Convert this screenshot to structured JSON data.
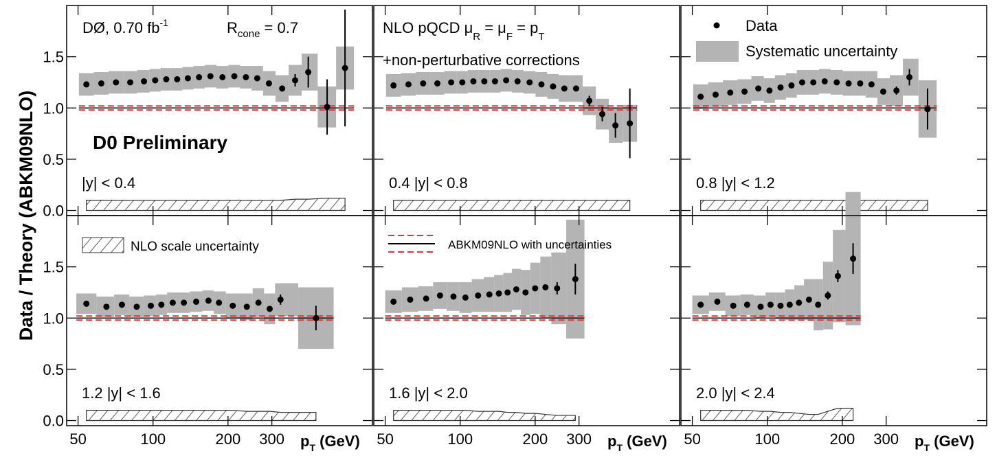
{
  "chart_data": {
    "type": "scatter",
    "ylabel": "Data / Theory (ABKM09NLO)",
    "xlabel": [
      "p",
      "T",
      " (GeV)"
    ],
    "log_x": true,
    "xlim": [
      45,
      760
    ],
    "xticks": [
      50,
      100,
      200,
      300
    ],
    "ylim": [
      -0.05,
      2.0
    ],
    "yticks": [
      {
        "value": 0,
        "label": "0.0"
      },
      {
        "value": 0.5,
        "label": "0.5"
      },
      {
        "value": 1,
        "label": "1.0"
      },
      {
        "value": 1.5,
        "label": "1.5"
      }
    ],
    "theory": 1,
    "pdf_uncertainty": 0.02,
    "colors": {
      "data": "#000000",
      "systematic": "#b4b4b4",
      "theory": "#000000",
      "pdf": "#e8322c",
      "preliminary": "#1a1adc"
    },
    "annotations": {
      "lumi": [
        "DØ, 0.70 fb",
        "-1"
      ],
      "rcone": [
        "R",
        "cone",
        " = 0.7"
      ],
      "nlo": [
        "NLO pQCD  μ",
        "R",
        " = μ",
        "F",
        " = p",
        "T"
      ],
      "np": "+non-perturbative corrections",
      "preliminary": "D0 Preliminary"
    },
    "legend": {
      "data": "Data",
      "systematic": "Systematic uncertainty",
      "scale": "NLO scale uncertainty",
      "theory": "ABKM09NLO with uncertainties"
    },
    "panels": [
      {
        "label": "|y| < 0.4",
        "x": [
          54,
          62,
          71,
          81,
          92,
          102,
          113,
          125,
          138,
          153,
          170,
          190,
          212,
          236,
          262,
          292,
          330,
          372,
          420,
          500,
          590
        ],
        "values": [
          1.23,
          1.24,
          1.25,
          1.25,
          1.26,
          1.27,
          1.28,
          1.28,
          1.29,
          1.3,
          1.31,
          1.3,
          1.31,
          1.3,
          1.29,
          1.24,
          1.19,
          1.27,
          1.35,
          1.01,
          1.39
        ],
        "errors": [
          0.01,
          0.01,
          0.01,
          0.01,
          0.01,
          0.01,
          0.01,
          0.01,
          0.01,
          0.01,
          0.01,
          0.01,
          0.01,
          0.01,
          0.01,
          0.02,
          0.03,
          0.06,
          0.15,
          0.27,
          0.57
        ],
        "syst": [
          0.11,
          0.11,
          0.11,
          0.11,
          0.11,
          0.11,
          0.11,
          0.11,
          0.11,
          0.11,
          0.11,
          0.11,
          0.11,
          0.11,
          0.12,
          0.12,
          0.13,
          0.15,
          0.18,
          0.2,
          0.21
        ],
        "scale_uncertainty": [
          0.1,
          0.1,
          0.1,
          0.1,
          0.1,
          0.1,
          0.1,
          0.1,
          0.1,
          0.1,
          0.1,
          0.1,
          0.1,
          0.1,
          0.1,
          0.1,
          0.1,
          0.11,
          0.11,
          0.12,
          0.12
        ]
      },
      {
        "label": "0.4 |y| < 0.8",
        "x": [
          54,
          62,
          71,
          81,
          92,
          102,
          113,
          125,
          138,
          153,
          170,
          190,
          212,
          236,
          262,
          292,
          330,
          372,
          420,
          480
        ],
        "values": [
          1.22,
          1.23,
          1.24,
          1.24,
          1.25,
          1.25,
          1.26,
          1.26,
          1.26,
          1.27,
          1.26,
          1.25,
          1.23,
          1.21,
          1.19,
          1.19,
          1.07,
          0.94,
          0.83,
          0.85
        ],
        "errors": [
          0.01,
          0.01,
          0.01,
          0.01,
          0.01,
          0.01,
          0.01,
          0.01,
          0.01,
          0.01,
          0.01,
          0.01,
          0.01,
          0.01,
          0.02,
          0.02,
          0.05,
          0.07,
          0.12,
          0.34
        ],
        "syst": [
          0.11,
          0.11,
          0.11,
          0.11,
          0.11,
          0.11,
          0.11,
          0.11,
          0.11,
          0.11,
          0.11,
          0.11,
          0.12,
          0.12,
          0.13,
          0.13,
          0.14,
          0.15,
          0.17,
          0.18
        ],
        "scale_uncertainty": [
          0.1,
          0.1,
          0.1,
          0.1,
          0.1,
          0.1,
          0.1,
          0.1,
          0.1,
          0.1,
          0.1,
          0.1,
          0.1,
          0.1,
          0.1,
          0.1,
          0.1,
          0.1,
          0.1,
          0.1
        ]
      },
      {
        "label": "0.8 |y| < 1.2",
        "x": [
          54,
          62,
          71,
          81,
          92,
          102,
          113,
          125,
          138,
          153,
          170,
          190,
          212,
          236,
          262,
          292,
          330,
          372,
          440
        ],
        "values": [
          1.11,
          1.13,
          1.15,
          1.16,
          1.19,
          1.17,
          1.2,
          1.22,
          1.25,
          1.25,
          1.26,
          1.25,
          1.24,
          1.24,
          1.23,
          1.16,
          1.17,
          1.3,
          0.99
        ],
        "errors": [
          0.01,
          0.01,
          0.01,
          0.01,
          0.01,
          0.01,
          0.01,
          0.01,
          0.01,
          0.01,
          0.01,
          0.01,
          0.01,
          0.01,
          0.01,
          0.02,
          0.04,
          0.08,
          0.2
        ],
        "syst": [
          0.12,
          0.12,
          0.12,
          0.12,
          0.12,
          0.12,
          0.12,
          0.12,
          0.12,
          0.12,
          0.12,
          0.12,
          0.12,
          0.12,
          0.13,
          0.13,
          0.15,
          0.18,
          0.28
        ],
        "scale_uncertainty": [
          0.1,
          0.1,
          0.1,
          0.1,
          0.1,
          0.1,
          0.1,
          0.1,
          0.1,
          0.1,
          0.1,
          0.1,
          0.1,
          0.1,
          0.1,
          0.1,
          0.1,
          0.1,
          0.1
        ]
      },
      {
        "label": "1.2 |y| < 1.6",
        "x": [
          54,
          65,
          75,
          86,
          98,
          108,
          120,
          133,
          149,
          167,
          184,
          209,
          238,
          265,
          294,
          325,
          451
        ],
        "values": [
          1.14,
          1.11,
          1.13,
          1.11,
          1.12,
          1.13,
          1.15,
          1.15,
          1.16,
          1.17,
          1.15,
          1.12,
          1.11,
          1.15,
          1.09,
          1.18,
          1.0
        ],
        "errors": [
          0.01,
          0.01,
          0.01,
          0.01,
          0.01,
          0.01,
          0.01,
          0.01,
          0.01,
          0.01,
          0.01,
          0.01,
          0.01,
          0.02,
          0.03,
          0.05,
          0.12
        ],
        "syst": [
          0.1,
          0.1,
          0.1,
          0.1,
          0.1,
          0.1,
          0.1,
          0.1,
          0.1,
          0.1,
          0.11,
          0.12,
          0.13,
          0.14,
          0.15,
          0.16,
          0.3
        ],
        "scale_uncertainty": [
          0.1,
          0.1,
          0.1,
          0.1,
          0.1,
          0.1,
          0.1,
          0.1,
          0.1,
          0.1,
          0.1,
          0.1,
          0.09,
          0.09,
          0.09,
          0.08,
          0.08
        ]
      },
      {
        "label": "1.6 |y| < 2.0",
        "x": [
          54,
          63,
          73,
          83,
          94,
          105,
          118,
          131,
          143,
          155,
          168,
          183,
          200,
          220,
          245,
          290
        ],
        "values": [
          1.16,
          1.18,
          1.19,
          1.22,
          1.21,
          1.2,
          1.22,
          1.23,
          1.24,
          1.25,
          1.28,
          1.25,
          1.29,
          1.3,
          1.29,
          1.38
        ],
        "errors": [
          0.01,
          0.01,
          0.01,
          0.01,
          0.01,
          0.01,
          0.01,
          0.01,
          0.01,
          0.01,
          0.01,
          0.01,
          0.01,
          0.02,
          0.06,
          0.15
        ],
        "syst": [
          0.11,
          0.12,
          0.12,
          0.13,
          0.14,
          0.15,
          0.16,
          0.17,
          0.18,
          0.19,
          0.2,
          0.22,
          0.25,
          0.3,
          0.35,
          0.58
        ],
        "scale_uncertainty": [
          0.1,
          0.1,
          0.1,
          0.1,
          0.1,
          0.1,
          0.09,
          0.09,
          0.09,
          0.08,
          0.08,
          0.07,
          0.07,
          0.06,
          0.05,
          0.05
        ]
      },
      {
        "label": "2.0 |y| < 2.4",
        "x": [
          54,
          63,
          73,
          83,
          94,
          103,
          113,
          123,
          134,
          147,
          160,
          175,
          192,
          221
        ],
        "values": [
          1.13,
          1.16,
          1.12,
          1.13,
          1.11,
          1.13,
          1.12,
          1.13,
          1.15,
          1.18,
          1.13,
          1.22,
          1.41,
          1.58
        ],
        "errors": [
          0.01,
          0.01,
          0.01,
          0.01,
          0.01,
          0.01,
          0.01,
          0.01,
          0.01,
          0.02,
          0.03,
          0.04,
          0.06,
          0.15
        ],
        "syst": [
          0.09,
          0.09,
          0.1,
          0.1,
          0.11,
          0.12,
          0.13,
          0.15,
          0.17,
          0.2,
          0.25,
          0.33,
          0.45,
          0.65
        ],
        "scale_uncertainty": [
          0.1,
          0.1,
          0.1,
          0.1,
          0.09,
          0.09,
          0.08,
          0.08,
          0.07,
          0.06,
          0.06,
          0.09,
          0.12,
          0.12
        ]
      }
    ]
  }
}
